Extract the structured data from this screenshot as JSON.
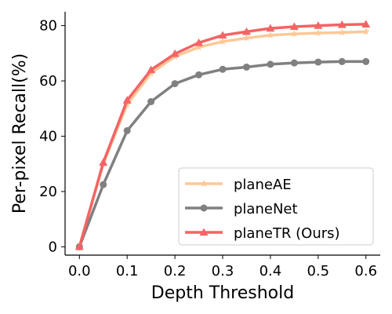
{
  "chart_data": {
    "type": "line",
    "title": "",
    "xlabel": "Depth Threshold",
    "ylabel": "Per-pixel Recall(%)",
    "xlim": [
      -0.03,
      0.63
    ],
    "ylim": [
      -3,
      85
    ],
    "x_ticks": [
      0.0,
      0.1,
      0.2,
      0.3,
      0.4,
      0.5,
      0.6
    ],
    "x_tick_labels": [
      "0.0",
      "0.1",
      "0.2",
      "0.3",
      "0.4",
      "0.5",
      "0.6"
    ],
    "y_ticks": [
      0,
      20,
      40,
      60,
      80
    ],
    "y_tick_labels": [
      "0",
      "20",
      "40",
      "60",
      "80"
    ],
    "grid": false,
    "legend_position": "bottom-right",
    "x": [
      0.0,
      0.05,
      0.1,
      0.15,
      0.2,
      0.25,
      0.3,
      0.35,
      0.4,
      0.45,
      0.5,
      0.55,
      0.6
    ],
    "series": [
      {
        "name": "planeAE",
        "color": "#fdc896",
        "marker": "star",
        "values": [
          0,
          30,
          51.5,
          62.8,
          68.8,
          72.2,
          74.2,
          75.5,
          76.5,
          77.0,
          77.3,
          77.5,
          77.8
        ]
      },
      {
        "name": "planeNet",
        "color": "#808080",
        "marker": "circle",
        "values": [
          0,
          22.5,
          42,
          52.5,
          59,
          62.2,
          64.2,
          65.0,
          66.0,
          66.5,
          66.8,
          67.0,
          67.0
        ]
      },
      {
        "name": "planeTR (Ours)",
        "color": "#f46464",
        "marker": "triangle",
        "values": [
          0,
          30.5,
          53,
          64,
          69.8,
          73.8,
          76.5,
          77.8,
          79.0,
          79.6,
          80.0,
          80.3,
          80.5
        ]
      }
    ]
  }
}
